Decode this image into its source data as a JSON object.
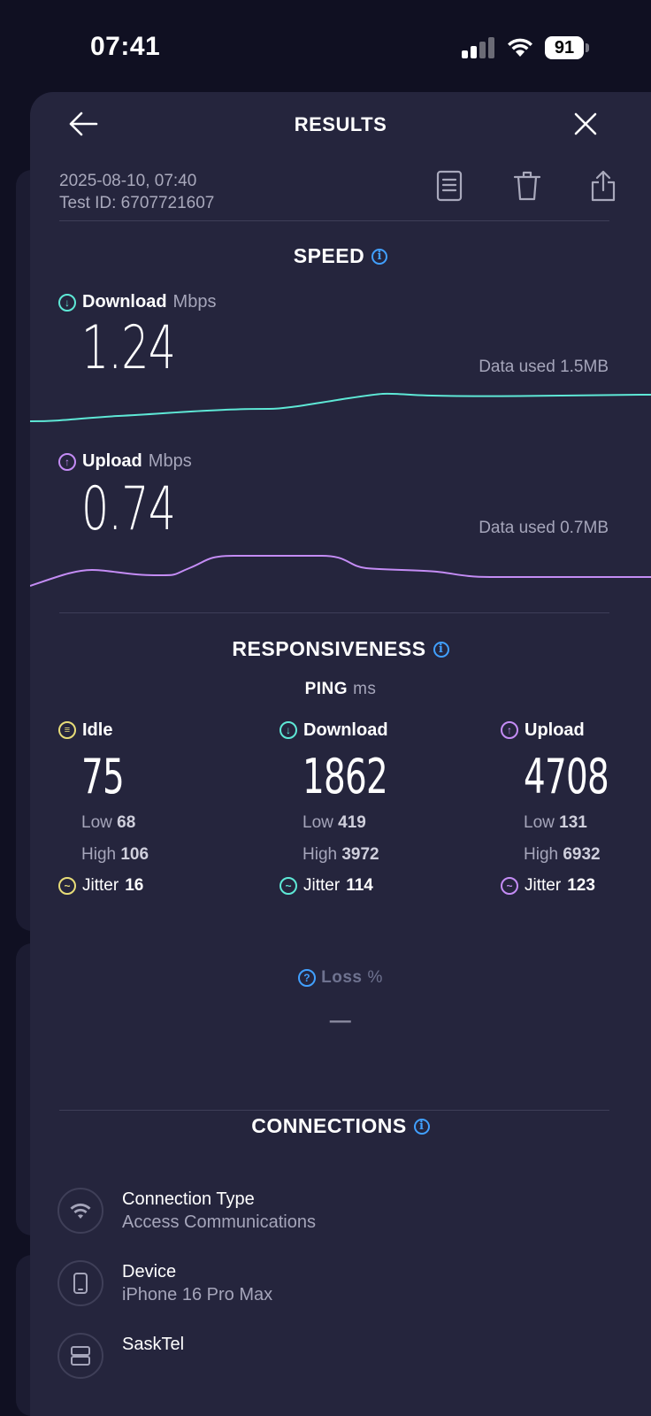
{
  "status_bar": {
    "time": "07:41",
    "battery": "91"
  },
  "header": {
    "title": "RESULTS"
  },
  "meta": {
    "datetime": "2025-08-10, 07:40",
    "test_id": "Test ID: 6707721607"
  },
  "speed": {
    "title": "SPEED",
    "download": {
      "label": "Download",
      "unit": "Mbps",
      "value": "1.24",
      "data_used": "Data used 1.5MB"
    },
    "upload": {
      "label": "Upload",
      "unit": "Mbps",
      "value": "0.74",
      "data_used": "Data used 0.7MB"
    }
  },
  "responsiveness": {
    "title": "RESPONSIVENESS",
    "ping_label": "PING",
    "ping_unit": "ms",
    "idle": {
      "label": "Idle",
      "value": "75",
      "low_label": "Low",
      "low": "68",
      "high_label": "High",
      "high": "106",
      "jitter_label": "Jitter",
      "jitter": "16"
    },
    "download": {
      "label": "Download",
      "value": "1862",
      "low_label": "Low",
      "low": "419",
      "high_label": "High",
      "high": "3972",
      "jitter_label": "Jitter",
      "jitter": "114"
    },
    "upload": {
      "label": "Upload",
      "value": "4708",
      "low_label": "Low",
      "low": "131",
      "high_label": "High",
      "high": "6932",
      "jitter_label": "Jitter",
      "jitter": "123"
    },
    "loss": {
      "label": "Loss",
      "unit": "%",
      "value": "—"
    }
  },
  "connections": {
    "title": "CONNECTIONS",
    "items": [
      {
        "title": "Connection Type",
        "subtitle": "Access Communications",
        "icon": "wifi-icon"
      },
      {
        "title": "Device",
        "subtitle": "iPhone 16 Pro Max",
        "icon": "phone-icon"
      },
      {
        "title": "SaskTel",
        "subtitle": "",
        "icon": "server-icon"
      }
    ]
  },
  "colors": {
    "background": "#25253d",
    "download": "#5ee8d6",
    "upload": "#c48cf5",
    "idle": "#e7dc78",
    "info": "#41a0ff"
  }
}
